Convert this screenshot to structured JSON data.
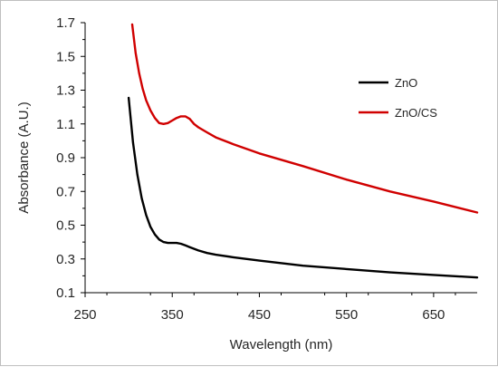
{
  "chart_data": {
    "type": "line",
    "title": "",
    "xlabel": "Wavelength (nm)",
    "ylabel": "Absorbance (A.U.)",
    "xlim": [
      250,
      700
    ],
    "ylim": [
      0.1,
      1.7
    ],
    "x_ticks": [
      "250",
      "350",
      "450",
      "550",
      "650"
    ],
    "x_tick_values": [
      250,
      350,
      450,
      550,
      650
    ],
    "y_ticks": [
      "0.1",
      "0.3",
      "0.5",
      "0.7",
      "0.9",
      "1.1",
      "1.3",
      "1.5",
      "1.7"
    ],
    "y_tick_values": [
      0.1,
      0.3,
      0.5,
      0.7,
      0.9,
      1.1,
      1.3,
      1.5,
      1.7
    ],
    "grid": false,
    "legend_position": "top-right",
    "series": [
      {
        "name": "ZnO",
        "color": "#000000",
        "x": [
          300,
          305,
          310,
          315,
          320,
          325,
          330,
          335,
          340,
          345,
          350,
          355,
          360,
          365,
          370,
          380,
          390,
          400,
          420,
          450,
          500,
          550,
          600,
          650,
          700
        ],
        "y": [
          1.255,
          0.99,
          0.8,
          0.66,
          0.56,
          0.49,
          0.445,
          0.415,
          0.4,
          0.395,
          0.395,
          0.395,
          0.39,
          0.38,
          0.37,
          0.35,
          0.335,
          0.325,
          0.31,
          0.29,
          0.26,
          0.24,
          0.22,
          0.205,
          0.19
        ]
      },
      {
        "name": "ZnO/CS",
        "color": "#d00000",
        "x": [
          304,
          308,
          312,
          316,
          320,
          325,
          330,
          335,
          340,
          345,
          350,
          355,
          360,
          365,
          370,
          375,
          380,
          390,
          400,
          420,
          450,
          500,
          550,
          600,
          650,
          700
        ],
        "y": [
          1.69,
          1.52,
          1.4,
          1.31,
          1.24,
          1.18,
          1.135,
          1.105,
          1.1,
          1.105,
          1.12,
          1.135,
          1.145,
          1.145,
          1.13,
          1.1,
          1.08,
          1.05,
          1.02,
          0.98,
          0.925,
          0.85,
          0.77,
          0.7,
          0.64,
          0.575
        ]
      }
    ]
  }
}
